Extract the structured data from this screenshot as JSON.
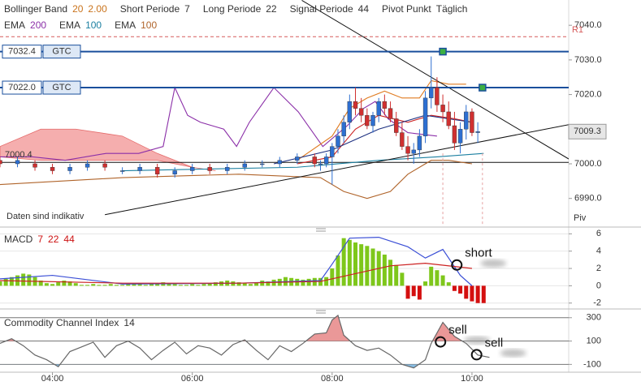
{
  "chart_data": [
    {
      "type": "candlestick",
      "header": [
        [
          [
            {
              "text": "Bollinger Band",
              "color": "#333333"
            },
            {
              "text": "20",
              "color": "#c9731c"
            },
            {
              "text": "2.00",
              "color": "#c9731c"
            }
          ],
          [
            {
              "text": "Short Periode",
              "color": "#333333"
            },
            {
              "text": "7",
              "color": "#333333"
            }
          ],
          [
            {
              "text": "Long Periode",
              "color": "#333333"
            },
            {
              "text": "22",
              "color": "#333333"
            }
          ],
          [
            {
              "text": "Signal Periode",
              "color": "#333333"
            },
            {
              "text": "44",
              "color": "#333333"
            }
          ],
          [
            {
              "text": "Pivot Punkt",
              "color": "#333333"
            },
            {
              "text": "Täglich",
              "color": "#333333"
            }
          ]
        ],
        [
          [
            {
              "text": "EMA",
              "color": "#333333"
            },
            {
              "text": "200",
              "color": "#8b2fa8"
            }
          ],
          [
            {
              "text": "EMA",
              "color": "#333333"
            },
            {
              "text": "100",
              "color": "#1b7fa0"
            }
          ],
          [
            {
              "text": "EMA",
              "color": "#333333"
            },
            {
              "text": "100",
              "color": "#b0642a"
            }
          ]
        ]
      ],
      "x": [
        195,
        210,
        225,
        240,
        255,
        270,
        285,
        300,
        315,
        330,
        345,
        360,
        375,
        390,
        405,
        420,
        435,
        450,
        465,
        470,
        475,
        480,
        485,
        490,
        495,
        500,
        505,
        510,
        515,
        520,
        525,
        530,
        535,
        540,
        545,
        550,
        555,
        560,
        565,
        570,
        575,
        580,
        585,
        590,
        595,
        600,
        605
      ],
      "open": [
        7001,
        7000,
        7000,
        6999,
        6998,
        6999,
        7000,
        6998,
        6998,
        6999,
        6997,
        6998,
        6999,
        6998,
        6999,
        7000,
        7000,
        7001,
        7002,
        7000,
        7000,
        7002,
        7005,
        7008,
        7012,
        7018,
        7016,
        7014,
        7011,
        7014,
        7018,
        7016,
        7013,
        7009,
        7005,
        7003,
        7004,
        7008,
        7019,
        7022,
        7017,
        7015,
        7011,
        7006,
        7010,
        7015,
        7009
      ],
      "high": [
        7002,
        7002,
        7001,
        7000,
        7000,
        7001,
        7001,
        6999,
        7000,
        7000,
        6999,
        7000,
        7000,
        7000,
        7001,
        7001,
        7002,
        7003,
        7003,
        7001,
        7003,
        7006,
        7010,
        7014,
        7020,
        7022,
        7019,
        7016,
        7015,
        7019,
        7020,
        7018,
        7015,
        7012,
        7008,
        7006,
        7010,
        7021,
        7031,
        7025,
        7020,
        7018,
        7015,
        7012,
        7017,
        7016,
        7012
      ],
      "low": [
        6999,
        6999,
        6998,
        6997,
        6997,
        6998,
        6998,
        6997,
        6997,
        6996,
        6996,
        6997,
        6997,
        6997,
        6998,
        6999,
        6999,
        7000,
        6999,
        6998,
        6999,
        6994,
        7003,
        7006,
        7010,
        7014,
        7012,
        7010,
        7009,
        7012,
        7014,
        7012,
        7008,
        7004,
        7001,
        7000,
        7002,
        7006,
        7016,
        7015,
        7012,
        7010,
        7004,
        7003,
        7007,
        7008,
        7006
      ],
      "close": [
        7000,
        7001,
        6999,
        6998,
        6999,
        7000,
        6999,
        6998,
        6999,
        6997,
        6998,
        6999,
        6998,
        6999,
        7000,
        7000,
        7001,
        7002,
        7000,
        7000,
        7002,
        7005,
        7008,
        7012,
        7018,
        7016,
        7014,
        7011,
        7014,
        7018,
        7016,
        7013,
        7009,
        7005,
        7003,
        7004,
        7008,
        7019,
        7022,
        7017,
        7015,
        7011,
        7006,
        7010,
        7015,
        7009,
        7009.3
      ],
      "up_color": "#2d6fd1",
      "down_color": "#d03030",
      "cloud": {
        "color": "#f4a0a0",
        "x": [
          195,
          230,
          260,
          300,
          330,
          360,
          380
        ],
        "upper": [
          7005,
          7010,
          7010,
          7008,
          7003,
          6999,
          6998
        ],
        "lower": [
          7002,
          7001,
          7001,
          7001,
          7001,
          6999,
          6998
        ]
      },
      "lines": [
        {
          "color": "#8b2fa8",
          "x": [
            195,
            223,
            251,
            286,
            314,
            335,
            345,
            356,
            367,
            377,
            387,
            398,
            409,
            430,
            451,
            472,
            493,
            507,
            517,
            528,
            545,
            570
          ],
          "values": [
            7002,
            7002,
            7001,
            7003,
            7003,
            7005,
            7022,
            7014,
            7012,
            7011,
            7010,
            7005,
            7012,
            7022,
            7015,
            7005,
            7011,
            7016,
            7018,
            7013,
            7009,
            7008
          ]
        },
        {
          "color": "#1b7fa0",
          "x": [
            300,
            450,
            520,
            570,
            610
          ],
          "values": [
            6998,
            6999,
            7001,
            7002,
            7003
          ]
        },
        {
          "color": "#b0642a",
          "x": [
            195,
            300,
            400,
            470,
            490,
            510,
            530,
            545,
            555,
            565,
            580,
            600
          ],
          "values": [
            6994,
            6996,
            6997,
            6996,
            6992,
            6990,
            6992,
            6997,
            6999,
            7001,
            7001,
            7000
          ]
        },
        {
          "color": "#e07b20",
          "x": [
            450,
            480,
            495,
            510,
            525,
            540,
            555,
            565,
            580,
            595
          ],
          "values": [
            7001,
            7008,
            7016,
            7019,
            7021,
            7019,
            7019,
            7024,
            7023,
            7023
          ]
        },
        {
          "color": "#cc2222",
          "x": [
            450,
            480,
            500,
            520,
            545,
            565,
            585,
            600
          ],
          "values": [
            7000,
            7002,
            7010,
            7014,
            7012,
            7014,
            7013,
            7012
          ]
        },
        {
          "color": "#1c2f80",
          "x": [
            430,
            480,
            520,
            560,
            600
          ],
          "values": [
            7000,
            7004,
            7010,
            7014,
            7012
          ]
        }
      ],
      "trendlines": [
        {
          "color": "#111111",
          "x": [
            454,
            683
          ],
          "values": [
            7047.2,
            7001.4
          ]
        },
        {
          "color": "#111111",
          "x": [
            285,
            683
          ],
          "values": [
            6985.3,
            7011.3
          ]
        }
      ],
      "orders": [
        {
          "price": 7032.4,
          "label": "7032.4",
          "tag": "GTC"
        },
        {
          "price": 7022.0,
          "label": "7022.0",
          "tag": "GTC"
        }
      ],
      "order_color": "#1a4f9c",
      "pivot": {
        "price": 7036.7,
        "label": "R1",
        "color": "#d65a5a"
      },
      "level": {
        "price": 7000.4,
        "label": "7000.4"
      },
      "last": {
        "price": 7009.3,
        "label": "7009.3"
      },
      "markers": [
        {
          "x": 575,
          "price": 7032.4
        },
        {
          "x": 609,
          "price": 7022.0
        }
      ],
      "notes": [
        "Daten sind indikativ",
        "Piv"
      ],
      "xlim": [
        195,
        683
      ],
      "xticks": [
        {
          "value": 240,
          "label": "04:00"
        },
        {
          "value": 360,
          "label": "06:00"
        },
        {
          "value": 480,
          "label": "08:00"
        },
        {
          "value": 600,
          "label": "10:00"
        }
      ],
      "ylim": [
        6982.2,
        7047.3
      ],
      "yticks": [
        {
          "value": 7040,
          "label": "7040.0"
        },
        {
          "value": 7030,
          "label": "7030.0"
        },
        {
          "value": 7020,
          "label": "7020.0"
        },
        {
          "value": 7000,
          "label": "7000.0"
        },
        {
          "value": 6990,
          "label": "6990.0"
        }
      ],
      "grid": false
    },
    {
      "type": "macd",
      "header": [
        [
          [
            {
              "text": "MACD",
              "color": "#333333"
            },
            {
              "text": "7",
              "color": "#cc1111"
            },
            {
              "text": "22",
              "color": "#cc1111"
            },
            {
              "text": "44",
              "color": "#cc1111"
            }
          ]
        ]
      ],
      "hist": {
        "up_color": "#7ec71b",
        "down_color": "#d40f0f",
        "x": [
          195,
          200,
          205,
          210,
          215,
          220,
          225,
          230,
          235,
          240,
          245,
          250,
          255,
          260,
          265,
          270,
          275,
          280,
          285,
          290,
          295,
          300,
          305,
          310,
          315,
          320,
          325,
          330,
          335,
          340,
          345,
          350,
          355,
          360,
          365,
          370,
          375,
          380,
          385,
          390,
          395,
          400,
          405,
          410,
          415,
          420,
          425,
          430,
          435,
          440,
          445,
          450,
          455,
          460,
          465,
          470,
          475,
          480,
          485,
          490,
          495,
          500,
          505,
          510,
          515,
          520,
          525,
          530,
          535,
          540,
          545,
          550,
          555,
          560,
          565,
          570,
          575,
          580,
          585,
          590,
          595,
          600,
          605,
          610
        ],
        "values": [
          0.5,
          0.8,
          1.0,
          1.2,
          1.4,
          1.3,
          1.0,
          0.6,
          0.3,
          0.2,
          0.4,
          0.6,
          0.5,
          0.3,
          0.1,
          0.1,
          0.2,
          0.1,
          0.1,
          0.2,
          0.1,
          0.1,
          0.2,
          0.3,
          0.2,
          0.1,
          0.2,
          0.3,
          0.4,
          0.3,
          0.2,
          0.1,
          0.1,
          0.2,
          0.1,
          0.2,
          0.3,
          0.4,
          0.5,
          0.6,
          0.5,
          0.4,
          0.3,
          0.2,
          0.4,
          0.6,
          0.5,
          0.7,
          0.8,
          1.0,
          0.9,
          0.8,
          0.7,
          0.8,
          0.9,
          0.9,
          1.0,
          2.0,
          3.5,
          5.5,
          5.3,
          5.0,
          4.8,
          4.6,
          4.3,
          4.0,
          3.6,
          3.0,
          2.4,
          1.5,
          -1.5,
          -1.2,
          -1.6,
          0.5,
          2.2,
          1.8,
          1.2,
          0.4,
          -0.6,
          -0.9,
          -1.5,
          -1.8,
          -2.0,
          -2.0
        ]
      },
      "lines": [
        {
          "color": "#3b4fd6",
          "x": [
            195,
            240,
            300,
            400,
            470,
            480,
            495,
            520,
            545,
            560,
            575,
            590,
            600
          ],
          "values": [
            0.8,
            1.2,
            0.2,
            0.3,
            0.6,
            2.5,
            5.5,
            5.6,
            4.5,
            3.2,
            4.2,
            1.2,
            0.0
          ]
        },
        {
          "color": "#cc2222",
          "x": [
            195,
            300,
            400,
            470,
            530,
            560,
            600
          ],
          "values": [
            0.6,
            0.3,
            0.3,
            0.5,
            2.3,
            2.6,
            2.0
          ]
        }
      ],
      "annotations": [
        {
          "text": "short",
          "x": 587,
          "y": 2.4
        }
      ],
      "ylim": [
        -2.4,
        6.5
      ],
      "yticks": [
        6,
        4,
        2,
        0,
        -2
      ],
      "grid": true,
      "grid_color": "#e6e6e6"
    },
    {
      "type": "cci",
      "header": [
        [
          [
            {
              "text": "Commodity Channel Index",
              "color": "#333333"
            },
            {
              "text": "14",
              "color": "#333333"
            }
          ]
        ]
      ],
      "line": {
        "color": "#666666",
        "fill_above": "#e88d8d",
        "fill_below": "#7bb6e0",
        "band": [
          100,
          -100
        ],
        "x": [
          195,
          205,
          215,
          225,
          235,
          245,
          255,
          265,
          275,
          285,
          295,
          305,
          315,
          325,
          335,
          345,
          355,
          365,
          375,
          385,
          395,
          405,
          415,
          425,
          435,
          445,
          455,
          465,
          475,
          480,
          485,
          490,
          500,
          510,
          520,
          530,
          540,
          550,
          560,
          565,
          575,
          585,
          595,
          605,
          615
        ],
        "values": [
          80,
          120,
          60,
          -20,
          -60,
          -120,
          10,
          50,
          90,
          -40,
          60,
          100,
          40,
          -60,
          20,
          90,
          -10,
          60,
          40,
          -20,
          70,
          110,
          20,
          -60,
          60,
          10,
          80,
          160,
          170,
          280,
          320,
          150,
          60,
          20,
          40,
          -20,
          -100,
          -130,
          -60,
          80,
          260,
          140,
          80,
          -20,
          -40
        ]
      },
      "annotations": [
        {
          "text": "sell",
          "x": 573,
          "y": 93
        },
        {
          "text": "sell",
          "x": 604,
          "y": -17
        }
      ],
      "ylim": [
        -160,
        340
      ],
      "yticks": [
        300,
        100,
        -100
      ],
      "grid": true,
      "grid_color": "#777777"
    }
  ]
}
